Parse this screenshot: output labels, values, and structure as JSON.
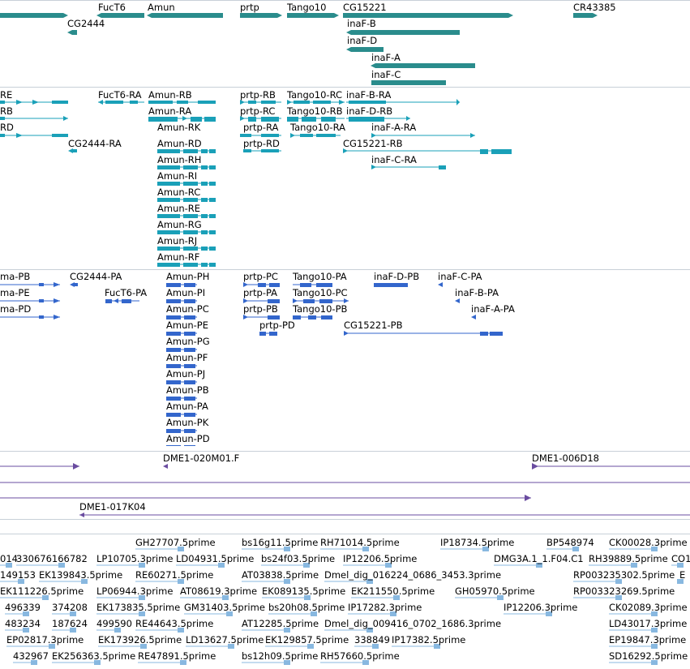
{
  "gene_track": {
    "labels": [
      "FucT6",
      "Amun",
      "prtp",
      "Tango10",
      "CG15221",
      "CR43385",
      "CG2444",
      "inaF-B",
      "inaF-D",
      "inaF-A",
      "inaF-C"
    ]
  },
  "transcript_track": {
    "labels": [
      "RE",
      "RB",
      "RD",
      "FucT6-RA",
      "Amun-RB",
      "Amun-RA",
      "Amun-RK",
      "Amun-RD",
      "Amun-RH",
      "Amun-RI",
      "Amun-RC",
      "Amun-RE",
      "Amun-RG",
      "Amun-RJ",
      "Amun-RF",
      "CG2444-RA",
      "prtp-RB",
      "prtp-RC",
      "prtp-RA",
      "prtp-RD",
      "Tango10-RC",
      "Tango10-RB",
      "Tango10-RA",
      "inaF-B-RA",
      "inaF-D-RB",
      "inaF-A-RA",
      "CG15221-RB",
      "inaF-C-RA"
    ]
  },
  "protein_track": {
    "labels": [
      "ma-PB",
      "ma-PE",
      "ma-PD",
      "CG2444-PA",
      "FucT6-PA",
      "Amun-PH",
      "Amun-PI",
      "Amun-PC",
      "Amun-PE",
      "Amun-PG",
      "Amun-PF",
      "Amun-PJ",
      "Amun-PB",
      "Amun-PA",
      "Amun-PK",
      "Amun-PD",
      "prtp-PC",
      "prtp-PA",
      "prtp-PB",
      "prtp-PD",
      "Tango10-PA",
      "Tango10-PC",
      "Tango10-PB",
      "CG15221-PB",
      "inaF-D-PB",
      "inaF-C-PA",
      "inaF-B-PA",
      "inaF-A-PA"
    ]
  },
  "clone_track": {
    "labels": [
      "DME1-020M01.F",
      "DME1-006D18",
      "DME1-017K04"
    ]
  },
  "est_track": {
    "labels": [
      "GH27707.5prime",
      "bs16g11.5prime",
      "RH71014.5prime",
      "IP18734.5prime",
      "BP548974",
      "CK00028.3prime",
      "014",
      "330676166782",
      "LP10705.3prime",
      "LD04931.5prime",
      "bs24f03.5prime",
      "IP12206.5prime",
      "DMG3A.1_1.F04.C1",
      "RH39889.5prime",
      "CO1",
      "149153",
      "EK139843.5prime",
      "RE60271.5prime",
      "AT03838.5prime",
      "Dmel_dig_016224_0686_3453.3prime",
      "RP003235302.5prime",
      "E",
      "EK111226.5prime",
      "LP06944.3prime",
      "AT08619.3prime",
      "EK089135.5prime",
      "EK211550.5prime",
      "GH05970.5prime",
      "RP003323269.5prime",
      "496339",
      "374208",
      "EK173835.5prime",
      "GM31403.5prime",
      "bs20h08.5prime",
      "IP17282.3prime",
      "IP12206.3prime",
      "CK02089.3prime",
      "483234",
      "187624",
      "499590",
      "RE44643.5prime",
      "AT12285.5prime",
      "Dmel_dig_009416_0702_1686.3prime",
      "LD43017.3prime",
      "EP02817.3prime",
      "EK173926.5prime",
      "LD13627.5prime",
      "EK129857.5prime",
      "338849",
      "IP17382.5prime",
      "EP19847.3prime",
      "432967",
      "EK256363.5prime",
      "RE47891.5prime",
      "bs12h09.5prime",
      "RH57660.5prime",
      "SD16292.5prime"
    ]
  },
  "colors": {
    "gene": "#2a8c8c",
    "transcript": "#1aa0b8",
    "protein": "#3366cc",
    "clone": "#6a4ca0",
    "est": "#88b8e0"
  }
}
